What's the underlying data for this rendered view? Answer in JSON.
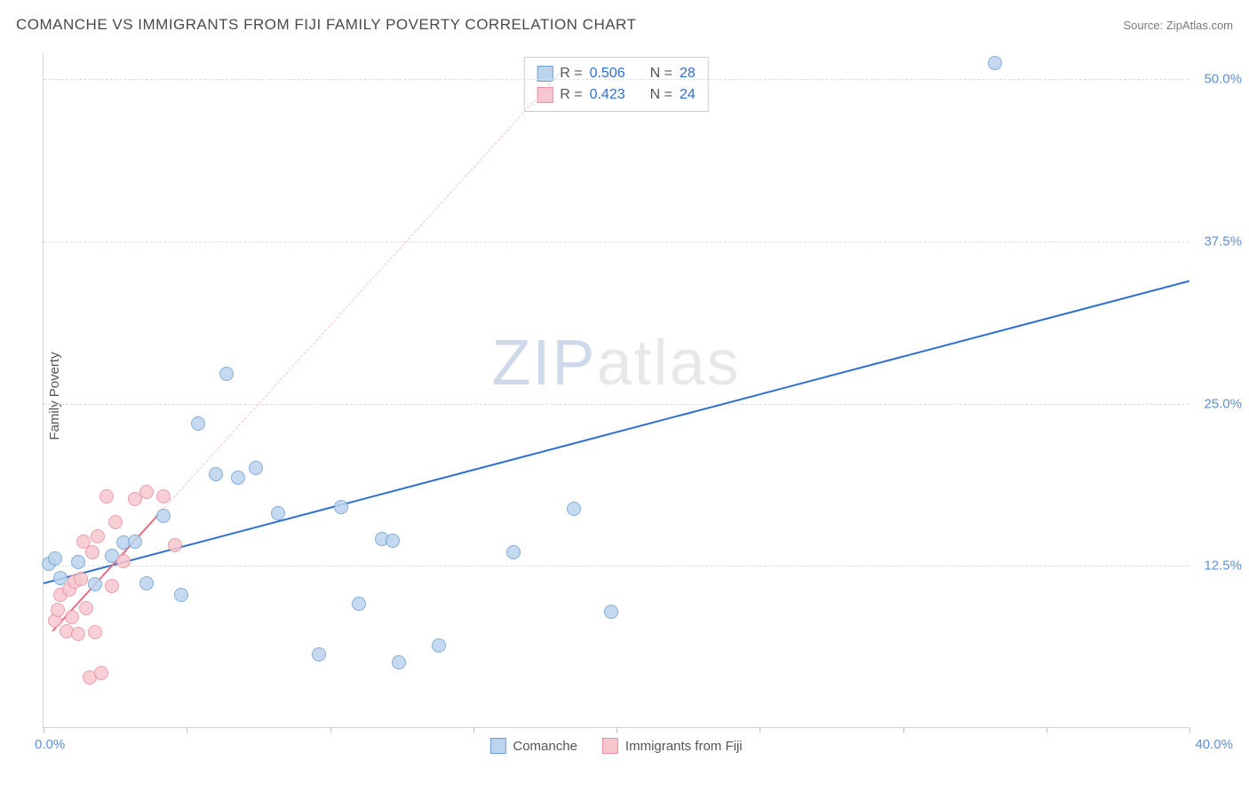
{
  "header": {
    "title": "COMANCHE VS IMMIGRANTS FROM FIJI FAMILY POVERTY CORRELATION CHART",
    "source": "Source: ZipAtlas.com"
  },
  "ylabel": "Family Poverty",
  "watermark": {
    "left": "ZIP",
    "right": "atlas"
  },
  "chart": {
    "type": "scatter",
    "xlim": [
      0,
      40
    ],
    "ylim": [
      0,
      52
    ],
    "yticks": [
      12.5,
      25.0,
      37.5,
      50.0
    ],
    "ytick_labels": [
      "12.5%",
      "25.0%",
      "37.5%",
      "50.0%"
    ],
    "xlim_labels": {
      "left": "0.0%",
      "right": "40.0%"
    },
    "xticks": [
      0,
      5,
      10,
      15,
      20,
      25,
      30,
      35,
      40
    ],
    "grid_color": "#dcdcdc",
    "background_color": "#ffffff",
    "point_radius": 8,
    "series": [
      {
        "id": "comanche",
        "label": "Comanche",
        "fill": "#bcd4ee",
        "stroke": "#6f9fcf",
        "R": "0.506",
        "N": "28",
        "trend": {
          "x1": 0,
          "y1": 11.2,
          "x2": 40,
          "y2": 34.5,
          "color": "#2f6fd0",
          "width": 2.5,
          "dash": false
        },
        "points": [
          [
            0.2,
            12.6
          ],
          [
            0.4,
            13.0
          ],
          [
            0.6,
            11.5
          ],
          [
            1.2,
            12.7
          ],
          [
            1.8,
            11.0
          ],
          [
            2.4,
            13.2
          ],
          [
            2.8,
            14.2
          ],
          [
            3.2,
            14.3
          ],
          [
            3.6,
            11.1
          ],
          [
            4.2,
            16.3
          ],
          [
            4.8,
            10.2
          ],
          [
            5.4,
            23.4
          ],
          [
            6.0,
            19.5
          ],
          [
            6.4,
            27.2
          ],
          [
            6.8,
            19.2
          ],
          [
            7.4,
            20.0
          ],
          [
            8.2,
            16.5
          ],
          [
            9.6,
            5.6
          ],
          [
            10.4,
            17.0
          ],
          [
            11.0,
            9.5
          ],
          [
            11.8,
            14.5
          ],
          [
            12.2,
            14.4
          ],
          [
            12.4,
            5.0
          ],
          [
            13.8,
            6.3
          ],
          [
            16.4,
            13.5
          ],
          [
            18.5,
            16.8
          ],
          [
            19.8,
            8.9
          ],
          [
            33.2,
            51.2
          ]
        ]
      },
      {
        "id": "fiji",
        "label": "Immigrants from Fiji",
        "fill": "#f6c7ce",
        "stroke": "#e98fa0",
        "R": "0.423",
        "N": "24",
        "trend": {
          "x1": 0.3,
          "y1": 7.5,
          "x2": 4.0,
          "y2": 16.5,
          "color": "#ea6b82",
          "width": 2.2,
          "dash": false
        },
        "trend_ext": {
          "x1": 4.0,
          "y1": 16.5,
          "x2": 18.0,
          "y2": 50.5,
          "color": "#f3c0c8",
          "width": 1.2,
          "dash": true
        },
        "points": [
          [
            0.4,
            8.2
          ],
          [
            0.5,
            9.0
          ],
          [
            0.6,
            10.2
          ],
          [
            0.8,
            7.4
          ],
          [
            0.9,
            10.6
          ],
          [
            1.0,
            8.5
          ],
          [
            1.1,
            11.2
          ],
          [
            1.2,
            7.2
          ],
          [
            1.3,
            11.4
          ],
          [
            1.4,
            14.3
          ],
          [
            1.5,
            9.2
          ],
          [
            1.6,
            3.8
          ],
          [
            1.7,
            13.5
          ],
          [
            1.8,
            7.3
          ],
          [
            1.9,
            14.7
          ],
          [
            2.0,
            4.2
          ],
          [
            2.2,
            17.8
          ],
          [
            2.4,
            10.9
          ],
          [
            2.5,
            15.8
          ],
          [
            2.8,
            12.8
          ],
          [
            3.2,
            17.6
          ],
          [
            3.6,
            18.1
          ],
          [
            4.2,
            17.8
          ],
          [
            4.6,
            14.0
          ]
        ]
      }
    ]
  },
  "legend_stats": {
    "R_label": "R =",
    "N_label": "N ="
  }
}
